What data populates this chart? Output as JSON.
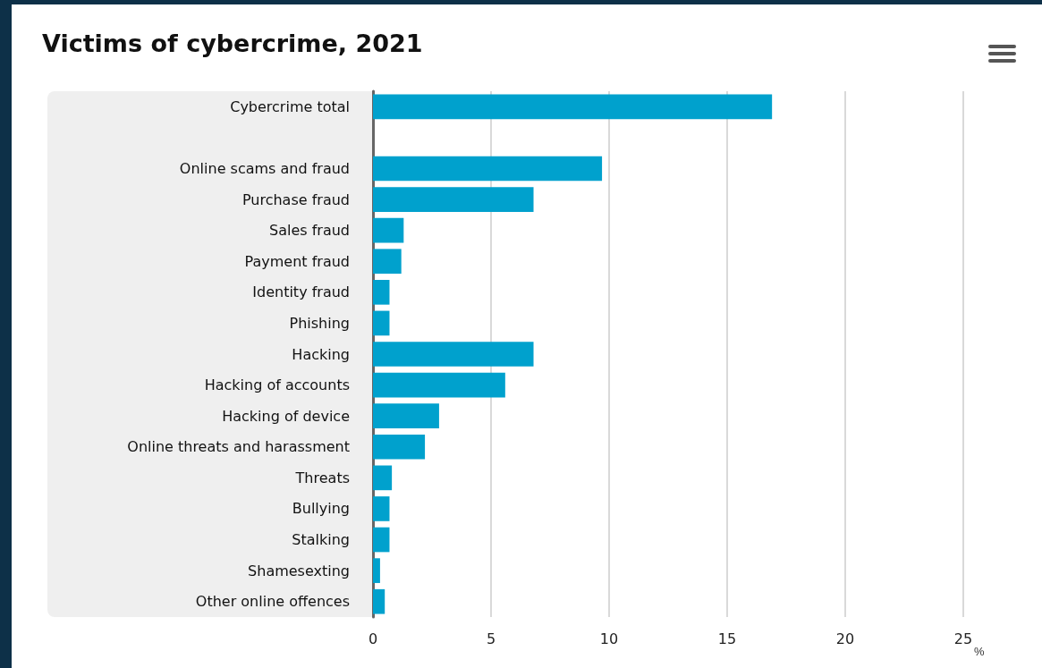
{
  "chart_data": {
    "type": "bar",
    "orientation": "horizontal",
    "title": "Victims of cybercrime, 2021",
    "xlabel": "%",
    "categories": [
      "Cybercrime total",
      null,
      "Online scams and fraud",
      "Purchase fraud",
      "Sales fraud",
      "Payment fraud",
      "Identity fraud",
      "Phishing",
      "Hacking",
      "Hacking of accounts",
      "Hacking of device",
      "Online threats and harassment",
      "Threats",
      "Bullying",
      "Stalking",
      "Shamesexting",
      "Other online offences"
    ],
    "values": [
      16.9,
      null,
      9.7,
      6.8,
      1.3,
      1.2,
      0.7,
      0.7,
      6.8,
      5.6,
      2.8,
      2.2,
      0.8,
      0.7,
      0.7,
      0.3,
      0.5
    ],
    "color": "#00a1cd",
    "xlim": [
      0,
      25
    ],
    "xticks": [
      0,
      5,
      10,
      15,
      20,
      25
    ],
    "grid": "x"
  }
}
